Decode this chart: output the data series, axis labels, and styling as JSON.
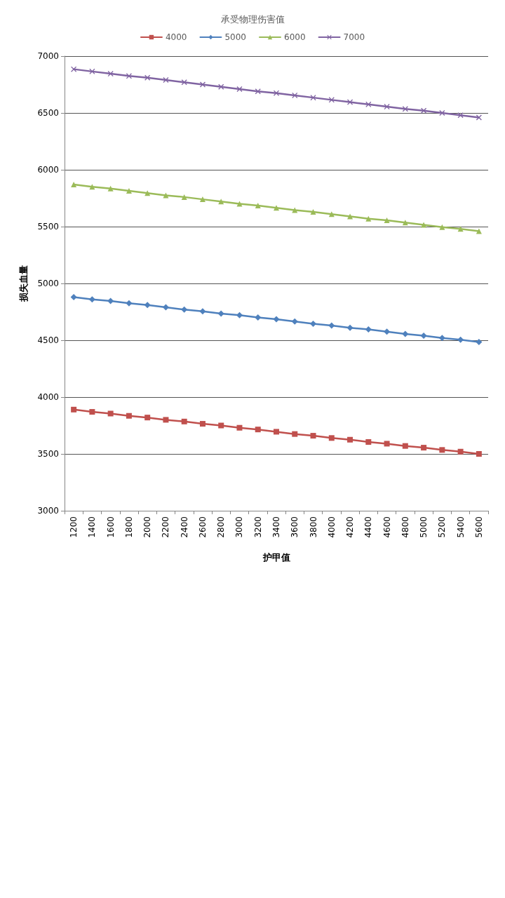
{
  "chart_data": {
    "type": "line",
    "legend_title": "承受物理伤害值",
    "xlabel": "护甲值",
    "ylabel": "损失血量",
    "categories": [
      "1200",
      "1400",
      "1600",
      "1800",
      "2000",
      "2200",
      "2400",
      "2600",
      "2800",
      "3000",
      "3200",
      "3400",
      "3600",
      "3800",
      "4000",
      "4200",
      "4400",
      "4600",
      "4800",
      "5000",
      "5200",
      "5400",
      "5600"
    ],
    "series": [
      {
        "name": "4000",
        "color": "#c0504d",
        "marker": "square",
        "values": [
          3890,
          3870,
          3855,
          3835,
          3820,
          3800,
          3785,
          3765,
          3750,
          3730,
          3715,
          3695,
          3675,
          3660,
          3640,
          3625,
          3605,
          3590,
          3570,
          3555,
          3535,
          3520,
          3500
        ]
      },
      {
        "name": "5000",
        "color": "#4f81bd",
        "marker": "diamond",
        "values": [
          4880,
          4860,
          4845,
          4825,
          4810,
          4790,
          4770,
          4755,
          4735,
          4720,
          4700,
          4685,
          4665,
          4645,
          4630,
          4610,
          4595,
          4575,
          4555,
          4540,
          4520,
          4505,
          4485
        ]
      },
      {
        "name": "6000",
        "color": "#9bbb59",
        "marker": "triangle",
        "values": [
          5870,
          5850,
          5835,
          5815,
          5795,
          5775,
          5760,
          5740,
          5720,
          5700,
          5685,
          5665,
          5645,
          5630,
          5610,
          5590,
          5570,
          5555,
          5535,
          5515,
          5495,
          5480,
          5460
        ]
      },
      {
        "name": "7000",
        "color": "#8064a2",
        "marker": "cross",
        "values": [
          6885,
          6865,
          6845,
          6825,
          6810,
          6790,
          6770,
          6750,
          6730,
          6710,
          6690,
          6675,
          6655,
          6635,
          6615,
          6595,
          6575,
          6555,
          6535,
          6520,
          6500,
          6480,
          6460
        ]
      }
    ],
    "ylim": [
      3000,
      7000
    ],
    "yticks": [
      3000,
      3500,
      4000,
      4500,
      5000,
      5500,
      6000,
      6500,
      7000
    ],
    "grid": "y",
    "legend": "top"
  }
}
